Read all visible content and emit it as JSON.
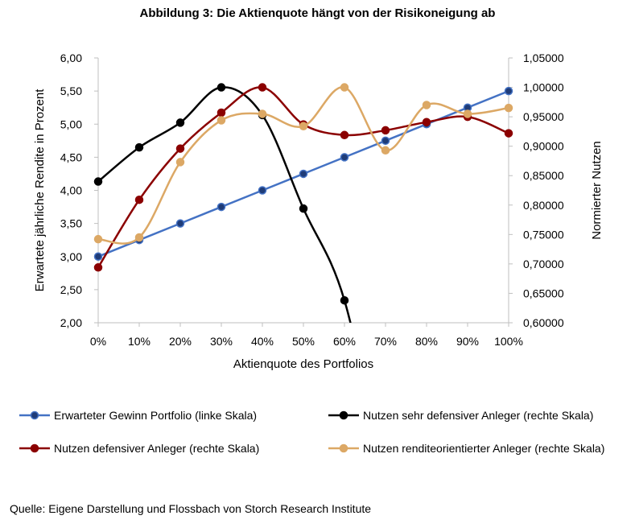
{
  "chart_data": {
    "type": "line",
    "title": "Abbildung 3: Die Aktienquote hängt von der Risikoneigung ab",
    "xlabel": "Aktienquote des Portfolios",
    "ylabel_left": "Erwartete jährliche Rendite in Prozent",
    "ylabel_right": "Normierter Nutzen",
    "categories": [
      "0%",
      "10%",
      "20%",
      "30%",
      "40%",
      "50%",
      "60%",
      "70%",
      "80%",
      "90%",
      "100%"
    ],
    "ylim_left": [
      2.0,
      6.0
    ],
    "yticks_left": [
      "2,00",
      "2,50",
      "3,00",
      "3,50",
      "4,00",
      "4,50",
      "5,00",
      "5,50",
      "6,00"
    ],
    "ylim_right": [
      0.6,
      1.05
    ],
    "yticks_right": [
      "0,60000",
      "0,65000",
      "0,70000",
      "0,75000",
      "0,80000",
      "0,85000",
      "0,90000",
      "0,95000",
      "1,00000",
      "1,05000"
    ],
    "grid": false,
    "legend_position": "bottom",
    "series": [
      {
        "name": "Erwarteter Gewinn Portfolio (linke Skala)",
        "axis": "left",
        "color": "#4472c4",
        "values": [
          3.0,
          3.25,
          3.5,
          3.75,
          4.0,
          4.25,
          4.5,
          4.75,
          5.0,
          5.25,
          5.5
        ]
      },
      {
        "name": "Nutzen sehr defensiver Anleger (rechte Skala)",
        "axis": "right",
        "color": "#000000",
        "values": [
          0.84,
          0.898,
          0.94,
          1.0,
          0.953,
          0.794,
          0.638,
          0.32,
          null,
          null,
          null
        ]
      },
      {
        "name": "Nutzen defensiver Anleger (rechte Skala)",
        "axis": "right",
        "color": "#8b0000",
        "values": [
          0.694,
          0.809,
          0.896,
          0.957,
          1.0,
          0.937,
          0.919,
          0.927,
          0.941,
          0.95,
          0.922
        ]
      },
      {
        "name": "Nutzen renditeorientierter Anleger (rechte Skala)",
        "axis": "right",
        "color": "#dca865",
        "values": [
          0.742,
          0.745,
          0.873,
          0.944,
          0.955,
          0.934,
          1.0,
          0.893,
          0.97,
          0.955,
          0.965
        ]
      }
    ]
  },
  "footer": {
    "source": "Quelle: Eigene Darstellung und Flossbach von Storch Research Institute"
  }
}
